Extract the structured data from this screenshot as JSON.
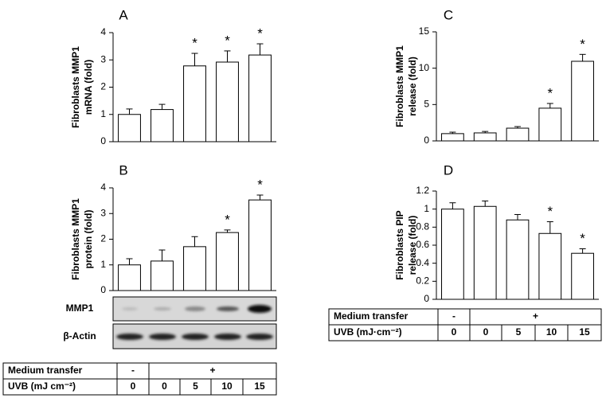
{
  "chart_data": [
    {
      "type": "bar",
      "panel": "A",
      "ylabel": [
        "Fibroblasts MMP1",
        "mRNA  (fold)"
      ],
      "color": "#ffffff",
      "values": [
        1.0,
        1.18,
        2.78,
        2.92,
        3.18
      ],
      "errors": [
        0.2,
        0.19,
        0.46,
        0.41,
        0.41
      ],
      "markers": [
        null,
        null,
        "*",
        "*",
        "*"
      ],
      "ylim": [
        0,
        4
      ],
      "yticks": [
        0,
        1,
        2,
        3,
        4
      ]
    },
    {
      "type": "bar",
      "panel": "B",
      "ylabel": [
        "Fibroblasts MMP1",
        "protein  (fold)"
      ],
      "color": "#ffffff",
      "values": [
        1.0,
        1.15,
        1.71,
        2.26,
        3.53
      ],
      "errors": [
        0.24,
        0.43,
        0.39,
        0.1,
        0.19
      ],
      "markers": [
        null,
        null,
        null,
        "*",
        "*"
      ],
      "ylim": [
        0,
        4
      ],
      "yticks": [
        0,
        1,
        2,
        3,
        4
      ]
    },
    {
      "type": "bar",
      "panel": "C",
      "ylabel": [
        "Fibroblasts MMP1",
        "release (fold)"
      ],
      "color": "#ffffff",
      "values": [
        1.0,
        1.1,
        1.75,
        4.5,
        10.95
      ],
      "errors": [
        0.2,
        0.2,
        0.22,
        0.65,
        0.95
      ],
      "markers": [
        null,
        null,
        null,
        "*",
        "*"
      ],
      "ylim": [
        0,
        15
      ],
      "yticks": [
        0,
        5,
        10,
        15
      ]
    },
    {
      "type": "bar",
      "panel": "D",
      "ylabel": [
        "Fibroblasts PIP",
        "release (fold)"
      ],
      "color": "#ffffff",
      "values": [
        1.0,
        1.03,
        0.88,
        0.73,
        0.51
      ],
      "errors": [
        0.07,
        0.06,
        0.06,
        0.13,
        0.05
      ],
      "markers": [
        null,
        null,
        null,
        "*",
        "*"
      ],
      "ylim": [
        0,
        1.2
      ],
      "yticks": [
        0,
        0.2,
        0.4,
        0.6,
        0.8,
        1,
        1.2
      ]
    }
  ],
  "blot": {
    "labels": [
      "MMP1",
      "β-Actin"
    ]
  },
  "tables": [
    {
      "rows": [
        [
          "Medium transfer",
          "-",
          "+"
        ],
        [
          "UVB (mJ cm⁻²)",
          "0",
          "0",
          "5",
          "10",
          "15"
        ]
      ]
    },
    {
      "rows": [
        [
          "Medium transfer",
          "-",
          "+"
        ],
        [
          "UVB (mJ·cm⁻²)",
          "0",
          "0",
          "5",
          "10",
          "15"
        ]
      ]
    }
  ]
}
